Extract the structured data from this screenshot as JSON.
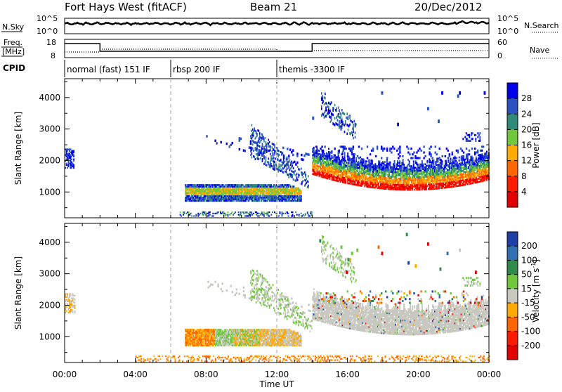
{
  "header": {
    "station": "Fort Hays West (fitACF)",
    "beam": "Beam 21",
    "date": "20/Dec/2012"
  },
  "noise_panel": {
    "left_label": "N.Sky",
    "right_label": "N.Search",
    "left_ticks": [
      "10^5",
      "10^0"
    ],
    "right_ticks": [
      "10^5",
      "10^0"
    ]
  },
  "freq_panel": {
    "left_label_1": "Freq.",
    "left_label_2": "[MHz]",
    "left_ticks": [
      "18",
      "8"
    ],
    "right_label": "Nave",
    "right_ticks": [
      "60",
      "0"
    ]
  },
  "cpid": {
    "label": "CPID",
    "segments": [
      {
        "name": "normal (fast) 151 IF",
        "start_h": 0,
        "end_h": 6
      },
      {
        "name": "rbsp 200 IF",
        "start_h": 6,
        "end_h": 12
      },
      {
        "name": "themis -3300 IF",
        "start_h": 12,
        "end_h": 24
      }
    ]
  },
  "chart_data": {
    "type": "heatmap",
    "x_axis": {
      "label": "Time UT",
      "range_h": [
        0,
        24
      ],
      "tick_labels": [
        "00:00",
        "04:00",
        "08:00",
        "12:00",
        "16:00",
        "20:00",
        "00:00"
      ]
    },
    "y_axis": {
      "label": "Slant Range [km]",
      "range_km": [
        180,
        4600
      ],
      "tick_values": [
        1000,
        2000,
        3000,
        4000
      ]
    },
    "power_panel": {
      "colorbar_label": "Power [dB]",
      "colorbar_ticks": [
        28,
        24,
        20,
        16,
        12,
        8,
        4
      ],
      "colors": [
        "#0000ee",
        "#2a52c4",
        "#2e8b7a",
        "#6ec83a",
        "#ffaa00",
        "#ff6600",
        "#ff1a00",
        "#e40000"
      ]
    },
    "velocity_panel": {
      "colorbar_label": "Velocity [m s^-1]",
      "colorbar_ticks": [
        200,
        100,
        50,
        15,
        -15,
        -50,
        -100,
        -200
      ],
      "colors": [
        "#1e3ea8",
        "#2f6fb2",
        "#2e8b4a",
        "#6ec83a",
        "#c8c8c0",
        "#ffaa00",
        "#ff6600",
        "#ff1a00",
        "#e40000"
      ]
    }
  }
}
